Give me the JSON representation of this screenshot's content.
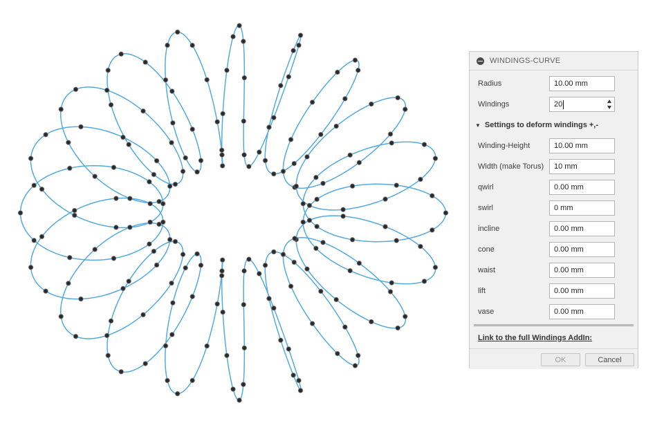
{
  "panel": {
    "title": "WINDINGS-CURVE",
    "fields": [
      {
        "label": "Radius",
        "value": "10.00 mm",
        "has_spinner": false,
        "focused": false
      },
      {
        "label": "Windings",
        "value": "20",
        "has_spinner": true,
        "focused": true
      }
    ],
    "section": {
      "label": "Settings to deform windings +,-",
      "collapse_icon": "triangle-down"
    },
    "section_fields": [
      {
        "label": "Winding-Height",
        "value": "10.00 mm"
      },
      {
        "label": "Width (make Torus)",
        "value": "10 mm"
      },
      {
        "label": "qwirl",
        "value": "0.00 mm"
      },
      {
        "label": "swirl",
        "value": "0 mm"
      },
      {
        "label": "incline",
        "value": "0.00 mm"
      },
      {
        "label": "cone",
        "value": "0.00 mm"
      },
      {
        "label": "waist",
        "value": "0.00 mm"
      },
      {
        "label": "lift",
        "value": "0.00 mm"
      },
      {
        "label": "vase",
        "value": "0.00 mm"
      }
    ],
    "link_label": "Link to the full Windings AddIn:",
    "buttons": {
      "ok": "OK",
      "cancel": "Cancel"
    }
  },
  "drawing": {
    "windings": 20,
    "radius_mm": 10,
    "winding_height_mm": 10,
    "width_mm": 10,
    "points_per_winding": 10,
    "curve_color": "#52AADF",
    "point_color": "#2b2b2b",
    "point_halo_color": "#8a8a8a"
  }
}
